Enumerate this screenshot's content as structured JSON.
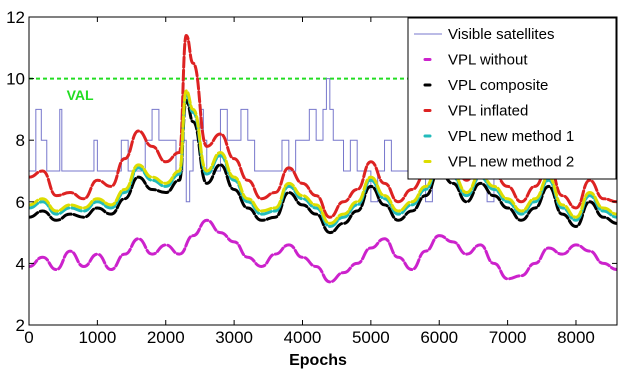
{
  "chart_data": {
    "type": "line",
    "title": "",
    "xlabel": "Epochs",
    "ylabel": "",
    "xlim": [
      0,
      8600
    ],
    "ylim": [
      2,
      12
    ],
    "xticks": [
      0,
      1000,
      2000,
      3000,
      4000,
      5000,
      6000,
      7000,
      8000
    ],
    "yticks": [
      2,
      4,
      6,
      8,
      10,
      12
    ],
    "grid": false,
    "legend_position": "top-right",
    "reference_lines": [
      {
        "name": "VAL",
        "y": 10,
        "color": "#22dd22",
        "label": "VAL",
        "label_x": 550,
        "label_y": 9.3
      }
    ],
    "series": [
      {
        "name": "Visible satellites",
        "style": "step",
        "color": "#7777cc",
        "points": [
          [
            0,
            7
          ],
          [
            100,
            9
          ],
          [
            180,
            8
          ],
          [
            260,
            7
          ],
          [
            400,
            7
          ],
          [
            450,
            9
          ],
          [
            480,
            7
          ],
          [
            900,
            7
          ],
          [
            950,
            8
          ],
          [
            1000,
            7
          ],
          [
            1300,
            7
          ],
          [
            1350,
            8
          ],
          [
            1450,
            7
          ],
          [
            1650,
            7
          ],
          [
            1700,
            8
          ],
          [
            1800,
            9
          ],
          [
            1900,
            8
          ],
          [
            2100,
            8
          ],
          [
            2150,
            7
          ],
          [
            2250,
            8
          ],
          [
            2300,
            6
          ],
          [
            2350,
            7
          ],
          [
            2400,
            8
          ],
          [
            2500,
            9
          ],
          [
            2550,
            8
          ],
          [
            2600,
            7
          ],
          [
            2750,
            7
          ],
          [
            2800,
            9
          ],
          [
            2900,
            8
          ],
          [
            3000,
            8
          ],
          [
            3100,
            9
          ],
          [
            3200,
            8
          ],
          [
            3300,
            7
          ],
          [
            3600,
            7
          ],
          [
            3700,
            8
          ],
          [
            3800,
            7
          ],
          [
            3900,
            8
          ],
          [
            4000,
            8
          ],
          [
            4100,
            9
          ],
          [
            4200,
            8
          ],
          [
            4300,
            9
          ],
          [
            4350,
            10
          ],
          [
            4400,
            9
          ],
          [
            4450,
            8
          ],
          [
            4600,
            7
          ],
          [
            4700,
            8
          ],
          [
            4800,
            7
          ],
          [
            5000,
            6
          ],
          [
            5100,
            7
          ],
          [
            5200,
            8
          ],
          [
            5300,
            7
          ],
          [
            5500,
            7
          ],
          [
            5600,
            8
          ],
          [
            5700,
            7
          ],
          [
            5800,
            6
          ],
          [
            5900,
            8
          ],
          [
            6000,
            9
          ],
          [
            6100,
            8
          ],
          [
            6300,
            7
          ],
          [
            6400,
            8
          ],
          [
            6500,
            9
          ],
          [
            6550,
            8
          ],
          [
            6600,
            7
          ],
          [
            6700,
            6
          ],
          [
            6800,
            7
          ],
          [
            6900,
            8
          ],
          [
            7000,
            7
          ],
          [
            7200,
            7
          ],
          [
            7300,
            8
          ],
          [
            7400,
            7
          ],
          [
            7600,
            7
          ],
          [
            7700,
            8
          ],
          [
            7800,
            7
          ],
          [
            7900,
            8
          ],
          [
            8000,
            8
          ],
          [
            8100,
            7
          ],
          [
            8200,
            8
          ],
          [
            8300,
            7
          ],
          [
            8400,
            8
          ],
          [
            8500,
            7
          ],
          [
            8600,
            7
          ]
        ]
      },
      {
        "name": "VPL without",
        "color": "#cc22cc",
        "points": [
          [
            0,
            3.9
          ],
          [
            200,
            4.2
          ],
          [
            400,
            3.8
          ],
          [
            600,
            4.4
          ],
          [
            800,
            3.9
          ],
          [
            1000,
            4.3
          ],
          [
            1200,
            3.8
          ],
          [
            1400,
            4.3
          ],
          [
            1600,
            4.8
          ],
          [
            1800,
            4.3
          ],
          [
            2000,
            4.6
          ],
          [
            2200,
            4.3
          ],
          [
            2400,
            4.9
          ],
          [
            2600,
            5.4
          ],
          [
            2800,
            5.0
          ],
          [
            3000,
            4.7
          ],
          [
            3200,
            4.2
          ],
          [
            3400,
            3.9
          ],
          [
            3600,
            4.3
          ],
          [
            3800,
            4.6
          ],
          [
            4000,
            4.2
          ],
          [
            4200,
            3.9
          ],
          [
            4400,
            3.4
          ],
          [
            4600,
            3.7
          ],
          [
            4800,
            4.0
          ],
          [
            5000,
            4.5
          ],
          [
            5200,
            4.8
          ],
          [
            5400,
            4.2
          ],
          [
            5600,
            3.8
          ],
          [
            5800,
            4.4
          ],
          [
            6000,
            4.9
          ],
          [
            6200,
            4.7
          ],
          [
            6400,
            4.3
          ],
          [
            6600,
            4.6
          ],
          [
            6800,
            4.0
          ],
          [
            7000,
            3.5
          ],
          [
            7200,
            3.6
          ],
          [
            7400,
            4.0
          ],
          [
            7600,
            4.5
          ],
          [
            7800,
            4.3
          ],
          [
            8000,
            4.6
          ],
          [
            8200,
            4.4
          ],
          [
            8400,
            4.0
          ],
          [
            8600,
            3.8
          ]
        ]
      },
      {
        "name": "VPL composite",
        "color": "#000000",
        "points": [
          [
            0,
            5.5
          ],
          [
            200,
            5.7
          ],
          [
            400,
            5.4
          ],
          [
            600,
            5.6
          ],
          [
            800,
            5.5
          ],
          [
            1000,
            5.8
          ],
          [
            1200,
            5.6
          ],
          [
            1400,
            6.1
          ],
          [
            1600,
            6.8
          ],
          [
            1800,
            6.4
          ],
          [
            2000,
            6.3
          ],
          [
            2200,
            6.7
          ],
          [
            2300,
            9.3
          ],
          [
            2400,
            8.6
          ],
          [
            2600,
            6.6
          ],
          [
            2800,
            7.2
          ],
          [
            3000,
            6.4
          ],
          [
            3200,
            5.8
          ],
          [
            3400,
            5.4
          ],
          [
            3600,
            5.5
          ],
          [
            3800,
            6.3
          ],
          [
            4000,
            5.9
          ],
          [
            4200,
            5.6
          ],
          [
            4400,
            5.0
          ],
          [
            4600,
            5.3
          ],
          [
            4800,
            5.7
          ],
          [
            5000,
            6.5
          ],
          [
            5200,
            5.9
          ],
          [
            5400,
            5.4
          ],
          [
            5600,
            5.7
          ],
          [
            5800,
            6.2
          ],
          [
            6000,
            7.0
          ],
          [
            6200,
            6.6
          ],
          [
            6400,
            6.0
          ],
          [
            6600,
            6.6
          ],
          [
            6800,
            6.2
          ],
          [
            7000,
            5.8
          ],
          [
            7200,
            5.4
          ],
          [
            7400,
            5.8
          ],
          [
            7600,
            6.5
          ],
          [
            7800,
            5.6
          ],
          [
            8000,
            5.2
          ],
          [
            8200,
            6.0
          ],
          [
            8400,
            5.5
          ],
          [
            8600,
            5.3
          ]
        ]
      },
      {
        "name": "VPL inflated",
        "color": "#dd2222",
        "points": [
          [
            0,
            6.8
          ],
          [
            200,
            7.0
          ],
          [
            400,
            6.2
          ],
          [
            600,
            6.3
          ],
          [
            800,
            6.1
          ],
          [
            1000,
            6.7
          ],
          [
            1200,
            6.5
          ],
          [
            1400,
            7.4
          ],
          [
            1600,
            8.3
          ],
          [
            1800,
            7.8
          ],
          [
            2000,
            7.3
          ],
          [
            2200,
            7.6
          ],
          [
            2300,
            11.4
          ],
          [
            2400,
            10.5
          ],
          [
            2600,
            7.8
          ],
          [
            2800,
            8.2
          ],
          [
            3000,
            7.4
          ],
          [
            3200,
            6.7
          ],
          [
            3400,
            6.1
          ],
          [
            3600,
            6.3
          ],
          [
            3800,
            7.1
          ],
          [
            4000,
            6.6
          ],
          [
            4200,
            6.2
          ],
          [
            4400,
            5.5
          ],
          [
            4600,
            6.0
          ],
          [
            4800,
            6.4
          ],
          [
            5000,
            7.3
          ],
          [
            5200,
            6.6
          ],
          [
            5400,
            6.0
          ],
          [
            5600,
            6.4
          ],
          [
            5800,
            6.9
          ],
          [
            6000,
            7.8
          ],
          [
            6200,
            7.3
          ],
          [
            6400,
            6.7
          ],
          [
            6600,
            7.4
          ],
          [
            6800,
            6.9
          ],
          [
            7000,
            6.5
          ],
          [
            7200,
            6.0
          ],
          [
            7400,
            6.5
          ],
          [
            7600,
            7.2
          ],
          [
            7800,
            6.2
          ],
          [
            8000,
            5.8
          ],
          [
            8200,
            6.7
          ],
          [
            8400,
            6.1
          ],
          [
            8600,
            6.0
          ]
        ]
      },
      {
        "name": "VPL new method 1",
        "color": "#22bbbb",
        "points": [
          [
            0,
            5.8
          ],
          [
            200,
            6.0
          ],
          [
            400,
            5.6
          ],
          [
            600,
            5.8
          ],
          [
            800,
            5.7
          ],
          [
            1000,
            6.0
          ],
          [
            1200,
            5.8
          ],
          [
            1400,
            6.3
          ],
          [
            1600,
            7.1
          ],
          [
            1800,
            6.7
          ],
          [
            2000,
            6.5
          ],
          [
            2200,
            6.9
          ],
          [
            2300,
            9.5
          ],
          [
            2400,
            8.9
          ],
          [
            2600,
            6.9
          ],
          [
            2800,
            7.5
          ],
          [
            3000,
            6.7
          ],
          [
            3200,
            6.0
          ],
          [
            3400,
            5.6
          ],
          [
            3600,
            5.7
          ],
          [
            3800,
            6.5
          ],
          [
            4000,
            6.1
          ],
          [
            4200,
            5.8
          ],
          [
            4400,
            5.2
          ],
          [
            4600,
            5.5
          ],
          [
            4800,
            5.9
          ],
          [
            5000,
            6.7
          ],
          [
            5200,
            6.1
          ],
          [
            5400,
            5.6
          ],
          [
            5600,
            5.9
          ],
          [
            5800,
            6.4
          ],
          [
            6000,
            7.2
          ],
          [
            6200,
            6.8
          ],
          [
            6400,
            6.2
          ],
          [
            6600,
            6.8
          ],
          [
            6800,
            6.4
          ],
          [
            7000,
            6.0
          ],
          [
            7200,
            5.6
          ],
          [
            7400,
            6.0
          ],
          [
            7600,
            6.7
          ],
          [
            7800,
            5.8
          ],
          [
            8000,
            5.4
          ],
          [
            8200,
            6.2
          ],
          [
            8400,
            5.7
          ],
          [
            8600,
            5.5
          ]
        ]
      },
      {
        "name": "VPL new method 2",
        "color": "#dddd00",
        "points": [
          [
            0,
            5.9
          ],
          [
            200,
            6.1
          ],
          [
            400,
            5.7
          ],
          [
            600,
            5.9
          ],
          [
            800,
            5.8
          ],
          [
            1000,
            6.1
          ],
          [
            1200,
            5.9
          ],
          [
            1400,
            6.4
          ],
          [
            1600,
            7.2
          ],
          [
            1800,
            6.8
          ],
          [
            2000,
            6.6
          ],
          [
            2200,
            7.0
          ],
          [
            2300,
            9.6
          ],
          [
            2400,
            9.0
          ],
          [
            2600,
            7.0
          ],
          [
            2800,
            7.6
          ],
          [
            3000,
            6.8
          ],
          [
            3200,
            6.1
          ],
          [
            3400,
            5.7
          ],
          [
            3600,
            5.8
          ],
          [
            3800,
            6.6
          ],
          [
            4000,
            6.2
          ],
          [
            4200,
            5.9
          ],
          [
            4400,
            5.3
          ],
          [
            4600,
            5.6
          ],
          [
            4800,
            6.0
          ],
          [
            5000,
            6.8
          ],
          [
            5200,
            6.2
          ],
          [
            5400,
            5.7
          ],
          [
            5600,
            6.0
          ],
          [
            5800,
            6.5
          ],
          [
            6000,
            7.3
          ],
          [
            6200,
            6.9
          ],
          [
            6400,
            6.3
          ],
          [
            6600,
            6.9
          ],
          [
            6800,
            6.5
          ],
          [
            7000,
            6.1
          ],
          [
            7200,
            5.7
          ],
          [
            7400,
            6.1
          ],
          [
            7600,
            6.8
          ],
          [
            7800,
            5.9
          ],
          [
            8000,
            5.5
          ],
          [
            8200,
            6.3
          ],
          [
            8400,
            5.8
          ],
          [
            8600,
            5.6
          ]
        ]
      }
    ]
  }
}
